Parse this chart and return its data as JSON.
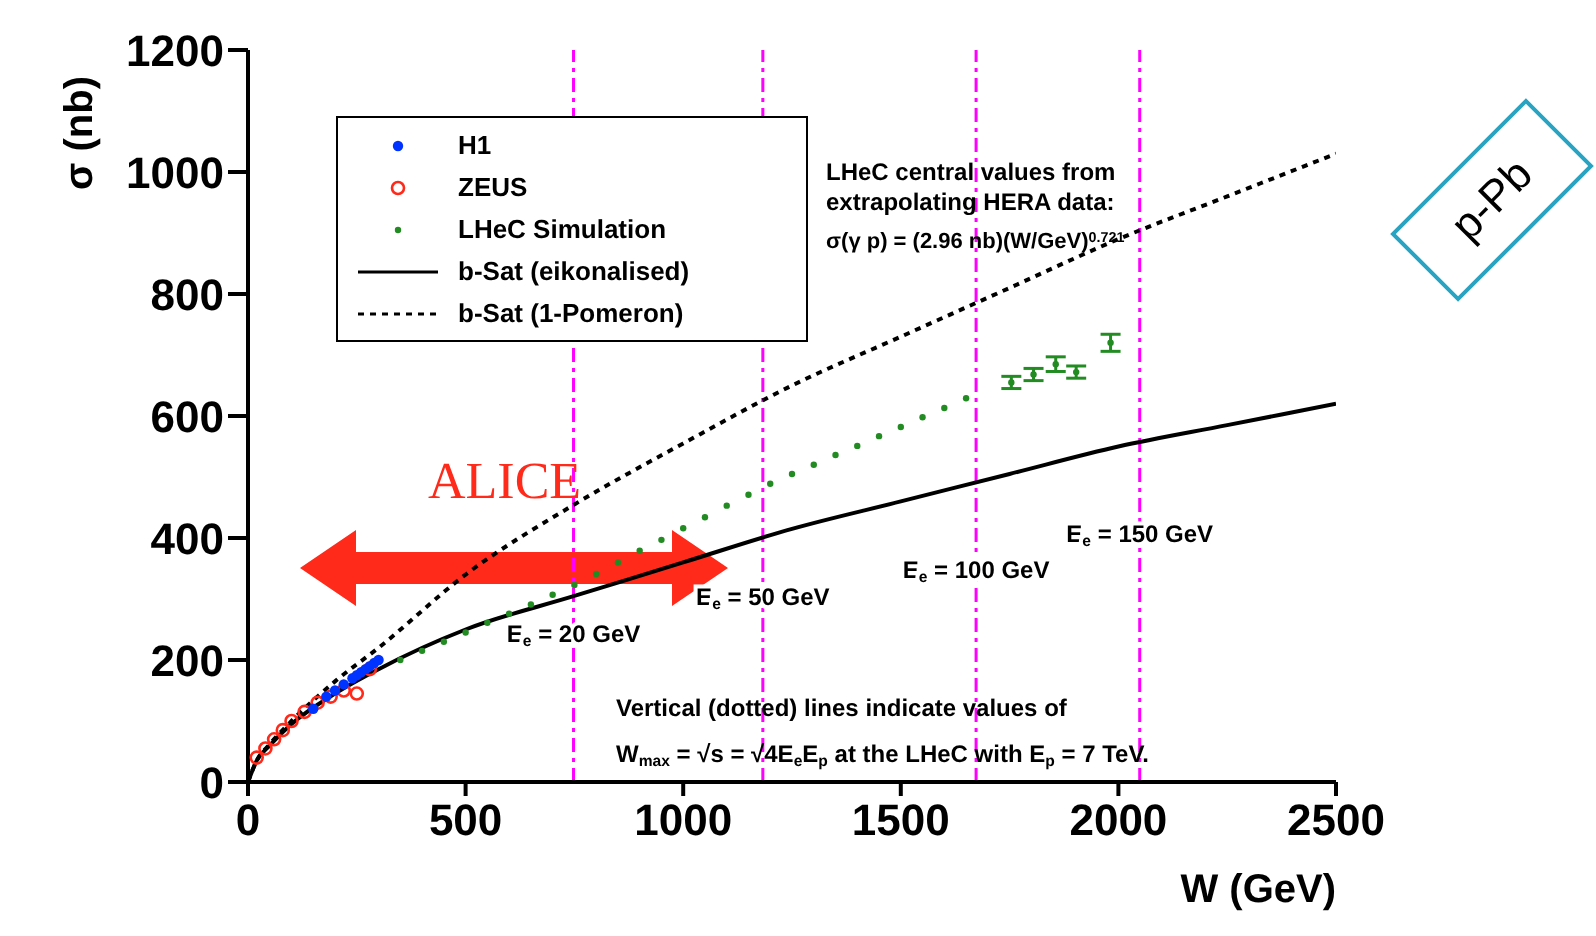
{
  "chart_data": {
    "type": "scatter",
    "xlabel": "W  (GeV)",
    "ylabel": "σ (nb)",
    "xlim": [
      0,
      2500
    ],
    "ylim": [
      0,
      1200
    ],
    "xticks": [
      0,
      500,
      1000,
      1500,
      2000,
      2500
    ],
    "yticks": [
      0,
      200,
      400,
      600,
      800,
      1000,
      1200
    ],
    "legend": "top left",
    "series": [
      {
        "name": "H1",
        "marker": "circle",
        "color": "#0033ff",
        "x": [
          150,
          180,
          200,
          220,
          240,
          250,
          260,
          270,
          280,
          290,
          300
        ],
        "values": [
          120,
          140,
          150,
          160,
          170,
          175,
          180,
          185,
          190,
          195,
          200
        ]
      },
      {
        "name": "ZEUS",
        "marker": "circle",
        "color": "#ff2a1a",
        "x": [
          20,
          40,
          60,
          80,
          100,
          130,
          160,
          190,
          220,
          250,
          280
        ],
        "values": [
          40,
          55,
          70,
          85,
          100,
          115,
          130,
          140,
          150,
          145,
          185
        ]
      },
      {
        "name": "LHeC Simulation",
        "marker": "circle",
        "color": "#228b22",
        "x": [
          350,
          400,
          450,
          500,
          550,
          600,
          650,
          700,
          750,
          800,
          850,
          900,
          950,
          1000,
          1050,
          1100,
          1150,
          1200,
          1250,
          1300,
          1350,
          1400,
          1450,
          1500,
          1550,
          1600,
          1650,
          1754,
          1805,
          1856,
          1903,
          1982
        ],
        "values": [
          200,
          215,
          230,
          245,
          261,
          276,
          291,
          307,
          323,
          341,
          360,
          379,
          397,
          416,
          434,
          453,
          471,
          489,
          505,
          520,
          536,
          551,
          567,
          582,
          598,
          613,
          629,
          655,
          668,
          685,
          672,
          720
        ],
        "errors": [
          null,
          null,
          null,
          null,
          null,
          null,
          null,
          null,
          null,
          null,
          null,
          null,
          null,
          null,
          null,
          null,
          null,
          null,
          null,
          null,
          null,
          null,
          null,
          null,
          null,
          null,
          null,
          10,
          10,
          12,
          10,
          14
        ]
      },
      {
        "name": "b-Sat (eikonalised)",
        "type": "line",
        "line_style": "solid",
        "color": "#000000",
        "x": [
          0,
          20,
          50,
          100,
          200,
          300,
          500,
          750,
          1000,
          1250,
          1500,
          1750,
          2000,
          2250,
          2500
        ],
        "values": [
          0,
          35,
          60,
          95,
          145,
          185,
          250,
          305,
          360,
          415,
          460,
          505,
          550,
          585,
          620
        ]
      },
      {
        "name": "b-Sat (1-Pomeron)",
        "type": "line",
        "line_style": "dotted",
        "color": "#000000",
        "x": [
          0,
          20,
          50,
          100,
          200,
          300,
          500,
          750,
          1000,
          1250,
          1500,
          1750,
          2000,
          2250,
          2500
        ],
        "values": [
          0,
          35,
          62,
          100,
          165,
          220,
          340,
          455,
          555,
          650,
          730,
          810,
          890,
          960,
          1030
        ]
      }
    ],
    "ref_lines": [
      {
        "axis": "x",
        "value": 748,
        "color": "#ff00ff",
        "line_style": "dashed"
      },
      {
        "axis": "x",
        "value": 1183,
        "color": "#ff00ff",
        "line_style": "dashed"
      },
      {
        "axis": "x",
        "value": 1673,
        "color": "#ff00ff",
        "line_style": "dashed"
      },
      {
        "axis": "x",
        "value": 2049,
        "color": "#ff00ff",
        "line_style": "dashed"
      }
    ],
    "annotations": [
      "LHeC central values from",
      "extrapolating HERA data:",
      "σ(γ p) = (2.96 nb)(W/GeV)$^{0.721}$",
      {
        "text": "E$_{e}$ =  20 GeV",
        "x": 748,
        "y": 230
      },
      {
        "text": "E$_{e}$ =  50 GeV",
        "x": 1183,
        "y": 290
      },
      {
        "text": "E$_{e}$ = 100 GeV",
        "x": 1673,
        "y": 335
      },
      {
        "text": "E$_{e}$ = 150 GeV",
        "x": 2049,
        "y": 393
      },
      "Vertical (dotted) lines indicate values of",
      "W$_{max}$ = √s = √4E$_{e}$E$_{p}$ at the LHeC with E$_{p}$ = 7 TeV.",
      "ALICE",
      "p-Pb"
    ]
  }
}
